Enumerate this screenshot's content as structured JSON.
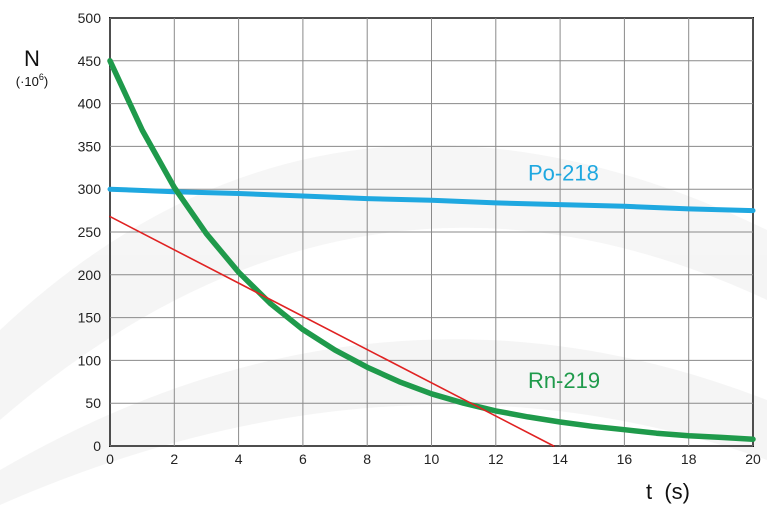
{
  "chart_data": {
    "type": "line",
    "title": "",
    "xlabel": "t  (s)",
    "ylabel": "N",
    "ylabel_unit": "(·10",
    "ylabel_unit_exp": "6",
    "ylabel_unit_close": ")",
    "xlim": [
      0,
      20
    ],
    "ylim": [
      0,
      500
    ],
    "x_ticks": [
      0,
      2,
      4,
      6,
      8,
      10,
      12,
      14,
      16,
      18,
      20
    ],
    "y_ticks": [
      0,
      50,
      100,
      150,
      200,
      250,
      300,
      350,
      400,
      450,
      500
    ],
    "grid": true,
    "series": [
      {
        "name": "Po-218",
        "color": "#1fa8e0",
        "x": [
          0,
          2,
          4,
          6,
          8,
          10,
          12,
          14,
          16,
          18,
          20
        ],
        "y": [
          300,
          297,
          295,
          292,
          289,
          287,
          284,
          282,
          280,
          277,
          275
        ]
      },
      {
        "name": "Rn-219",
        "color": "#1f9a4b",
        "x": [
          0,
          1,
          2,
          3,
          4,
          5,
          6,
          7,
          8,
          9,
          10,
          11,
          12,
          13,
          14,
          15,
          16,
          17,
          18,
          19,
          20
        ],
        "y": [
          450,
          369,
          302,
          248,
          203,
          166,
          136,
          112,
          92,
          75,
          61,
          50,
          41,
          34,
          28,
          23,
          19,
          15,
          12,
          10,
          8
        ]
      },
      {
        "name": "",
        "color": "#e02222",
        "x": [
          0,
          13.8
        ],
        "y": [
          268,
          0
        ]
      }
    ],
    "annotations": [
      {
        "text": "Po-218",
        "x": 13.0,
        "y": 310,
        "color": "#1fa8e0"
      },
      {
        "text": "Rn-219",
        "x": 13.0,
        "y": 68,
        "color": "#1f9a4b"
      }
    ]
  }
}
